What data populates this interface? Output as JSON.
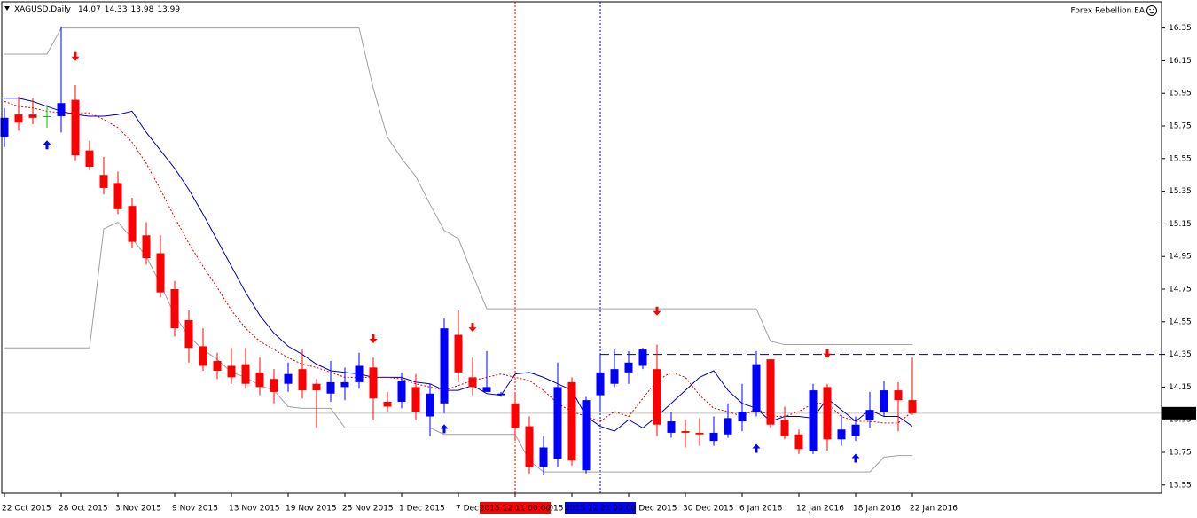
{
  "chart_data": {
    "type": "candlestick",
    "title": "XAGUSD,Daily",
    "indicator_name": "Forex Rebellion EA",
    "categories": [
      "22 Oct 2015",
      null,
      null,
      null,
      "28 Oct 2015",
      null,
      null,
      null,
      "3 Nov 2015",
      null,
      null,
      null,
      "9 Nov 2015",
      null,
      null,
      null,
      "13 Nov 2015",
      null,
      null,
      null,
      "19 Nov 2015",
      null,
      null,
      null,
      "25 Nov 2015",
      null,
      null,
      null,
      "1 Dec 2015",
      null,
      null,
      null,
      "7 Dec 2015",
      null,
      null,
      null,
      "11 Dec 2015",
      null,
      null,
      null,
      "17 Dec 2015",
      null,
      null,
      null,
      "23 Dec 2015",
      null,
      null,
      null,
      "30 Dec 2015",
      null,
      null,
      null,
      "6 Jan 2016",
      null,
      null,
      null,
      "12 Jan 2016",
      null,
      null,
      null,
      "18 Jan 2016",
      null,
      null,
      null,
      "22 Jan 2016"
    ],
    "open": [
      15.68,
      15.82,
      15.82,
      15.81,
      15.81,
      15.91,
      15.6,
      15.45,
      15.4,
      15.26,
      15.08,
      14.97,
      14.75,
      14.56,
      14.4,
      14.31,
      14.28,
      14.29,
      14.24,
      14.2,
      14.17,
      14.26,
      14.17,
      14.11,
      14.15,
      14.18,
      14.27,
      14.06,
      14.06,
      14.15,
      13.97,
      14.05,
      14.47,
      14.21,
      14.12,
      14.1,
      14.05,
      13.91,
      13.66,
      13.71,
      14.18,
      13.64,
      14.1,
      14.17,
      14.24,
      14.28,
      14.26,
      13.87,
      13.88,
      13.87,
      13.82,
      13.86,
      13.94,
      14.0,
      14.32,
      13.95,
      13.86,
      13.76,
      14.15,
      13.83,
      13.85,
      13.95,
      14.0,
      14.13,
      14.07
    ],
    "high": [
      15.86,
      15.93,
      15.92,
      15.88,
      16.36,
      16.0,
      15.66,
      15.56,
      15.47,
      15.31,
      15.16,
      15.08,
      14.8,
      14.62,
      14.51,
      14.36,
      14.39,
      14.39,
      14.33,
      14.26,
      14.3,
      14.38,
      14.2,
      14.31,
      14.27,
      14.36,
      14.33,
      14.12,
      14.24,
      14.23,
      14.17,
      14.57,
      14.62,
      14.33,
      14.37,
      14.12,
      14.11,
      13.97,
      13.85,
      14.3,
      14.21,
      14.09,
      14.35,
      14.38,
      14.37,
      14.39,
      14.41,
      14.0,
      13.95,
      13.96,
      13.97,
      14.05,
      14.17,
      14.37,
      14.32,
      14.03,
      13.89,
      14.17,
      14.17,
      13.98,
      13.97,
      14.12,
      14.19,
      14.18,
      14.33
    ],
    "low": [
      15.62,
      15.72,
      15.76,
      15.74,
      15.71,
      15.54,
      15.48,
      15.33,
      15.21,
      15.0,
      14.9,
      14.7,
      14.46,
      14.3,
      14.25,
      14.2,
      14.17,
      14.14,
      14.1,
      14.05,
      14.12,
      14.08,
      13.9,
      14.06,
      14.07,
      14.14,
      13.95,
      14.0,
      14.02,
      13.95,
      13.85,
      13.99,
      14.18,
      14.1,
      14.12,
      14.09,
      13.82,
      13.62,
      13.61,
      13.66,
      13.67,
      13.62,
      14.01,
      14.15,
      14.17,
      14.26,
      13.85,
      13.84,
      13.78,
      13.79,
      13.79,
      13.84,
      13.88,
      13.97,
      13.9,
      13.83,
      13.74,
      13.74,
      13.76,
      13.79,
      13.82,
      13.9,
      13.97,
      13.88,
      13.98
    ],
    "close": [
      15.8,
      15.77,
      15.8,
      15.81,
      15.89,
      15.57,
      15.5,
      15.37,
      15.24,
      15.04,
      14.94,
      14.73,
      14.51,
      14.39,
      14.28,
      14.25,
      14.21,
      14.17,
      14.15,
      14.12,
      14.23,
      14.13,
      14.13,
      14.18,
      14.18,
      14.28,
      14.08,
      14.03,
      14.19,
      14.0,
      14.11,
      14.51,
      14.24,
      14.15,
      14.15,
      14.11,
      13.9,
      13.66,
      13.78,
      14.15,
      13.7,
      14.07,
      14.24,
      14.26,
      14.3,
      14.38,
      13.92,
      13.94,
      13.87,
      13.86,
      13.87,
      13.96,
      14.0,
      14.29,
      13.92,
      13.85,
      13.77,
      14.13,
      13.83,
      13.89,
      13.92,
      14.01,
      14.13,
      14.07,
      13.99
    ],
    "up_color": "#0000ff",
    "down_color": "#ff0000",
    "doji_color": "#00c000",
    "lines": [
      {
        "color": "#0000aa",
        "dash": "none",
        "values": [
          15.92,
          15.92,
          15.9,
          15.87,
          15.84,
          15.82,
          15.81,
          15.81,
          15.82,
          15.84,
          15.71,
          15.6,
          15.49,
          15.36,
          15.21,
          15.05,
          14.89,
          14.73,
          14.59,
          14.48,
          14.4,
          14.35,
          14.29,
          14.25,
          14.24,
          14.23,
          14.21,
          14.21,
          14.21,
          14.18,
          14.17,
          14.13,
          14.13,
          14.16,
          14.11,
          14.1,
          14.23,
          14.24,
          14.21,
          14.17,
          14.13,
          13.97,
          13.91,
          13.88,
          13.95,
          13.9,
          13.97,
          14.05,
          14.13,
          14.21,
          14.25,
          14.13,
          14.05,
          14.02,
          13.94,
          13.97,
          13.97,
          13.96,
          14.08,
          14.01,
          13.94,
          14.01,
          13.97,
          13.97,
          13.91
        ]
      },
      {
        "color": "#dd0000",
        "dash": "2,2",
        "values": [
          15.9,
          15.87,
          15.86,
          15.84,
          15.83,
          15.83,
          15.83,
          15.79,
          15.74,
          15.65,
          15.52,
          15.36,
          15.19,
          15.03,
          14.89,
          14.76,
          14.62,
          14.51,
          14.43,
          14.38,
          14.33,
          14.29,
          14.27,
          14.24,
          14.21,
          14.21,
          14.21,
          14.21,
          14.2,
          14.17,
          14.15,
          14.13,
          14.16,
          14.19,
          14.21,
          14.23,
          14.21,
          14.19,
          14.13,
          14.05,
          14.0,
          13.97,
          13.94,
          14.0,
          13.97,
          14.08,
          14.19,
          14.24,
          14.21,
          14.1,
          14.02,
          14.0,
          13.97,
          14.02,
          13.97,
          13.97,
          14.0,
          14.05,
          14.05,
          13.97,
          13.94,
          13.94,
          13.93,
          13.93,
          14.0
        ]
      },
      {
        "color": "#a0a0a0",
        "dash": "none",
        "values": [
          16.19,
          16.19,
          16.19,
          16.19,
          16.35,
          16.35,
          16.35,
          16.35,
          16.35,
          16.35,
          16.35,
          16.35,
          16.35,
          16.35,
          16.35,
          16.35,
          16.35,
          16.35,
          16.35,
          16.35,
          16.35,
          16.35,
          16.35,
          16.35,
          16.35,
          16.35,
          15.98,
          15.68,
          15.55,
          15.44,
          15.27,
          15.11,
          15.06,
          14.84,
          14.63,
          14.63,
          14.63,
          14.63,
          14.63,
          14.63,
          14.63,
          14.63,
          14.63,
          14.63,
          14.63,
          14.63,
          14.63,
          14.63,
          14.63,
          14.63,
          14.63,
          14.63,
          14.63,
          14.63,
          14.43,
          14.41,
          14.41,
          14.41,
          14.41,
          14.41,
          14.41,
          14.41,
          14.41,
          14.41,
          14.41
        ]
      },
      {
        "color": "#a0a0a0",
        "dash": "none",
        "values": [
          14.39,
          14.39,
          14.39,
          14.39,
          14.39,
          14.39,
          14.39,
          15.12,
          15.16,
          15.06,
          14.95,
          14.78,
          14.59,
          14.46,
          14.38,
          14.32,
          14.24,
          14.21,
          14.16,
          14.13,
          14.03,
          14.02,
          14.02,
          14.02,
          13.9,
          13.9,
          13.9,
          13.9,
          13.9,
          13.9,
          13.9,
          13.86,
          13.86,
          13.86,
          13.86,
          13.86,
          13.86,
          13.7,
          13.63,
          13.63,
          13.63,
          13.63,
          13.63,
          13.63,
          13.63,
          13.63,
          13.63,
          13.63,
          13.63,
          13.63,
          13.63,
          13.63,
          13.63,
          13.63,
          13.63,
          13.63,
          13.63,
          13.63,
          13.63,
          13.63,
          13.63,
          13.63,
          13.72,
          13.73,
          13.73
        ]
      }
    ],
    "sell_arrows": [
      null,
      null,
      null,
      null,
      null,
      16.17,
      null,
      null,
      null,
      null,
      null,
      null,
      null,
      null,
      null,
      null,
      null,
      null,
      null,
      null,
      null,
      null,
      null,
      null,
      null,
      null,
      14.44,
      null,
      null,
      null,
      null,
      null,
      null,
      14.51,
      null,
      null,
      null,
      null,
      null,
      null,
      null,
      null,
      null,
      null,
      null,
      null,
      14.61,
      null,
      null,
      null,
      null,
      null,
      null,
      null,
      14.26,
      null,
      null,
      null,
      14.35,
      null,
      null,
      null,
      null,
      null,
      null
    ],
    "buy_arrows": [
      null,
      null,
      null,
      15.64,
      null,
      null,
      null,
      null,
      null,
      null,
      null,
      null,
      null,
      null,
      null,
      null,
      null,
      null,
      null,
      null,
      null,
      null,
      null,
      null,
      null,
      null,
      null,
      null,
      null,
      null,
      null,
      13.9,
      null,
      null,
      null,
      null,
      null,
      null,
      null,
      null,
      null,
      null,
      null,
      null,
      null,
      null,
      null,
      null,
      null,
      null,
      null,
      null,
      null,
      13.78,
      null,
      null,
      null,
      null,
      null,
      null,
      13.72,
      null,
      null,
      null,
      null
    ],
    "cursor_labels": [
      null,
      null,
      null,
      null,
      null,
      null,
      null,
      null,
      null,
      null,
      null,
      null,
      null,
      null,
      null,
      null,
      null,
      null,
      null,
      null,
      null,
      null,
      null,
      null,
      null,
      null,
      null,
      null,
      null,
      null,
      null,
      null,
      null,
      null,
      null,
      null,
      "2015.12.11 00:00",
      null,
      null,
      null,
      null,
      null,
      "2015.12.21 00:00",
      null,
      null,
      null,
      null,
      null,
      null,
      null,
      null,
      null,
      null,
      null,
      null,
      null,
      null,
      null,
      null,
      null,
      null,
      null,
      null,
      null,
      null
    ],
    "cursor_colors": [
      "#ff0000",
      "#0000ff"
    ],
    "hline": 14.35,
    "hline_color": "#000080",
    "ylim": [
      13.5,
      16.5
    ],
    "yticks": [
      16.35,
      16.15,
      15.95,
      15.75,
      15.55,
      15.35,
      15.15,
      14.95,
      14.75,
      14.55,
      14.35,
      14.15,
      13.95,
      13.75,
      13.55
    ]
  }
}
